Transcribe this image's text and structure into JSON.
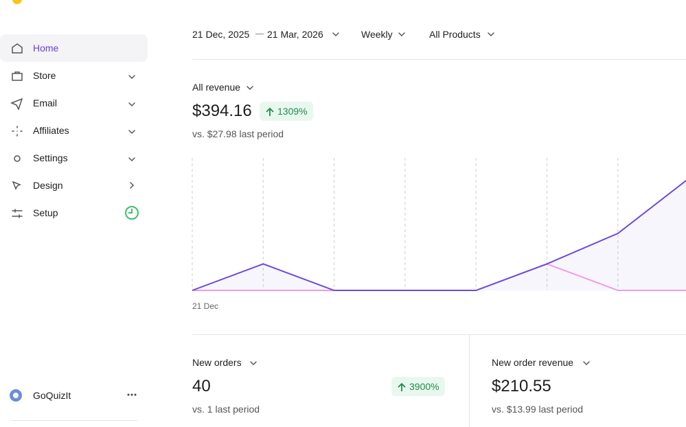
{
  "sidebar": {
    "nav": [
      {
        "label": "Home"
      },
      {
        "label": "Store"
      },
      {
        "label": "Email"
      },
      {
        "label": "Affiliates"
      },
      {
        "label": "Settings"
      },
      {
        "label": "Design"
      },
      {
        "label": "Setup"
      }
    ],
    "account": "GoQuizIt"
  },
  "filters": {
    "date_start": "21 Dec, 2025",
    "date_end": "21 Mar, 2026",
    "interval": "Weekly",
    "products": "All Products"
  },
  "revenue": {
    "label": "All revenue",
    "value": "$394.16",
    "change": "1309%",
    "comparison": "vs. $27.98 last period"
  },
  "chart_data": {
    "type": "line",
    "categories": [
      "21 Dec",
      null,
      null,
      null,
      null,
      null,
      null,
      null
    ],
    "series": [
      {
        "color": "#6c47e0",
        "values": [
          0,
          40,
          0,
          0,
          0,
          40,
          86,
          169
        ]
      },
      {
        "color": "#f09ae9",
        "values": [
          0,
          0,
          0,
          0,
          0,
          40,
          0,
          0
        ]
      }
    ],
    "ylim": [
      0,
      200
    ]
  },
  "cards": [
    {
      "label": "New orders",
      "value": "40",
      "change": "3900%",
      "comparison": "vs. 1 last period"
    },
    {
      "label": "New order revenue",
      "value": "$210.55",
      "comparison": "vs. $13.99 last period"
    }
  ]
}
